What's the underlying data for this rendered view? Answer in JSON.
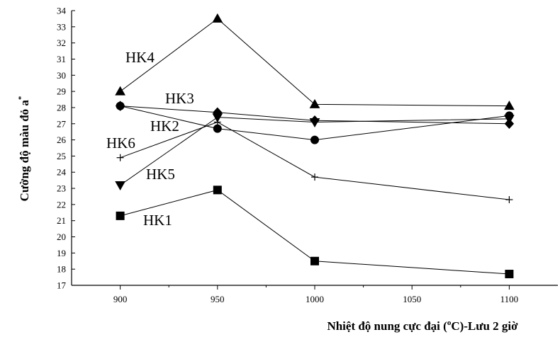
{
  "chart_data": {
    "type": "line",
    "xlabel": "Nhiệt độ nung cực đại (°C)-Lưu 2 giờ",
    "xlabel_parts": {
      "pre": "Nhiệt độ nung cực đại (",
      "sup": "o",
      "post": "C)-Lưu 2 giờ"
    },
    "ylabel": "Cường độ màu đỏ a*",
    "ylabel_parts": {
      "main": "Cường độ màu đỏ a",
      "sup": "*"
    },
    "xlim": [
      875,
      1125
    ],
    "ylim": [
      17,
      34
    ],
    "x_ticks": [
      900,
      950,
      1000,
      1050,
      1100
    ],
    "y_ticks": [
      17,
      18,
      19,
      20,
      21,
      22,
      23,
      24,
      25,
      26,
      27,
      28,
      29,
      30,
      31,
      32,
      33,
      34
    ],
    "grid": false,
    "series": [
      {
        "name": "HK1",
        "marker": "square",
        "x": [
          900,
          950,
          1000,
          1100
        ],
        "y": [
          21.3,
          22.9,
          18.5,
          17.7
        ]
      },
      {
        "name": "HK2",
        "marker": "circle",
        "x": [
          900,
          950,
          1000,
          1100
        ],
        "y": [
          28.1,
          26.7,
          26.0,
          27.5
        ]
      },
      {
        "name": "HK3",
        "marker": "diamond",
        "x": [
          900,
          950,
          1000,
          1100
        ],
        "y": [
          28.1,
          27.7,
          27.2,
          27.0
        ]
      },
      {
        "name": "HK4",
        "marker": "triangle-up",
        "x": [
          900,
          950,
          1000,
          1100
        ],
        "y": [
          29.0,
          33.5,
          28.2,
          28.1
        ]
      },
      {
        "name": "HK5",
        "marker": "triangle-down",
        "x": [
          900,
          950,
          1000,
          1100
        ],
        "y": [
          23.2,
          27.4,
          27.1,
          27.3
        ]
      },
      {
        "name": "HK6",
        "marker": "plus",
        "x": [
          900,
          950,
          1000,
          1100
        ],
        "y": [
          24.9,
          27.1,
          23.7,
          22.3
        ]
      }
    ]
  }
}
